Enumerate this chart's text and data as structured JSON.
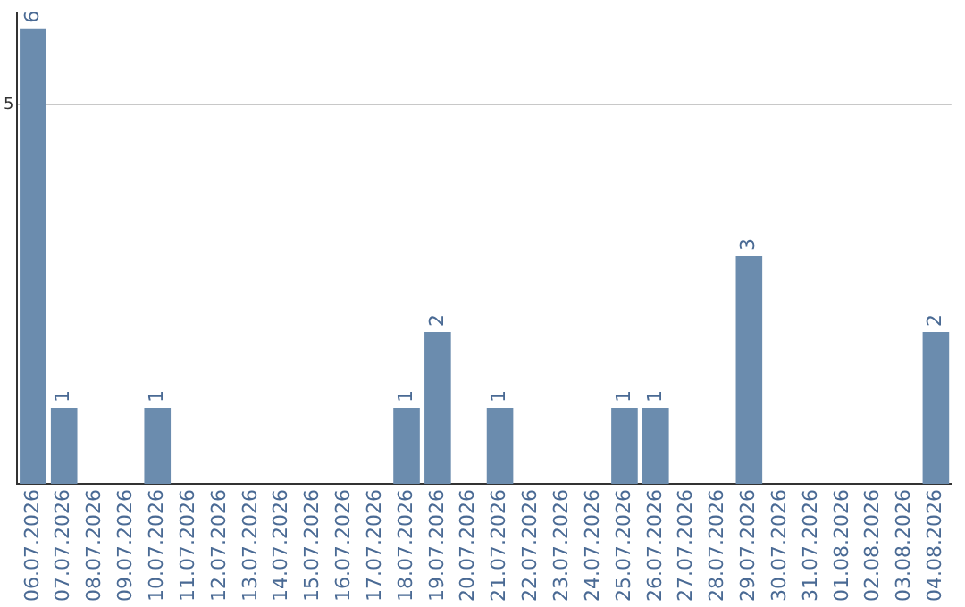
{
  "chart_data": {
    "type": "bar",
    "categories": [
      "06.07.2026",
      "07.07.2026",
      "08.07.2026",
      "09.07.2026",
      "10.07.2026",
      "11.07.2026",
      "12.07.2026",
      "13.07.2026",
      "14.07.2026",
      "15.07.2026",
      "16.07.2026",
      "17.07.2026",
      "18.07.2026",
      "19.07.2026",
      "20.07.2026",
      "21.07.2026",
      "22.07.2026",
      "23.07.2026",
      "24.07.2026",
      "25.07.2026",
      "26.07.2026",
      "27.07.2026",
      "28.07.2026",
      "29.07.2026",
      "30.07.2026",
      "31.07.2026",
      "01.08.2026",
      "02.08.2026",
      "03.08.2026",
      "04.08.2026"
    ],
    "values": [
      6,
      1,
      0,
      0,
      1,
      0,
      0,
      0,
      0,
      0,
      0,
      0,
      1,
      2,
      0,
      1,
      0,
      0,
      0,
      1,
      1,
      0,
      0,
      3,
      0,
      0,
      0,
      0,
      0,
      2
    ],
    "value_labels": [
      "6",
      "1",
      null,
      null,
      "1",
      null,
      null,
      null,
      null,
      null,
      null,
      null,
      "1",
      "2",
      null,
      "1",
      null,
      null,
      null,
      "1",
      "1",
      null,
      null,
      "3",
      null,
      null,
      null,
      null,
      null,
      "2"
    ],
    "color": "#6b8cae",
    "ylim": [
      0,
      6.2
    ],
    "yticks": [
      5
    ],
    "grid": "y",
    "legend": false
  }
}
